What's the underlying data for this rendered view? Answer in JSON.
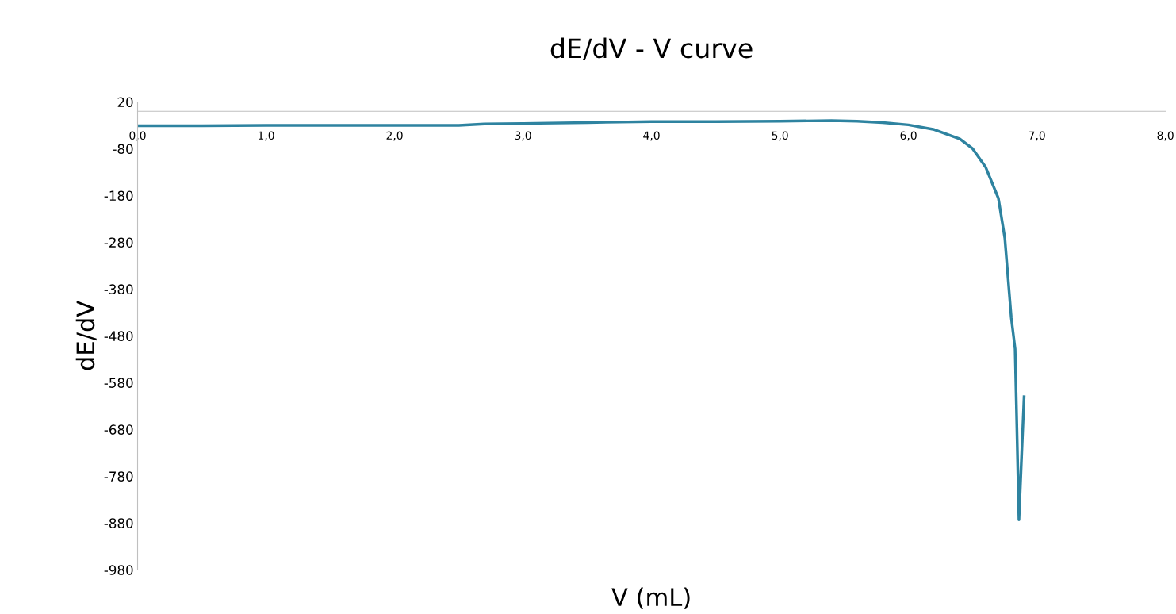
{
  "chart_data": {
    "type": "line",
    "title": "dE/dV - V curve",
    "xlabel": "V (mL)",
    "ylabel": "dE/dV",
    "series": [
      {
        "color": "#2e83a0",
        "x": [
          0.0,
          0.5,
          1.0,
          1.5,
          2.0,
          2.5,
          2.7,
          3.0,
          3.5,
          4.0,
          4.5,
          5.0,
          5.4,
          5.6,
          5.8,
          6.0,
          6.2,
          6.4,
          6.5,
          6.6,
          6.7,
          6.75,
          6.8,
          6.83,
          6.86,
          6.9
        ],
        "values": [
          -31,
          -31,
          -30,
          -30,
          -30,
          -30,
          -27,
          -26,
          -24,
          -22,
          -22,
          -21,
          -20,
          -21,
          -24,
          -29,
          -39,
          -59,
          -80,
          -119,
          -186,
          -271,
          -441,
          -508,
          -873,
          -610
        ]
      }
    ],
    "xlim": [
      0,
      8
    ],
    "ylim": [
      -980,
      20
    ],
    "xticks": [
      {
        "value": 0,
        "label": "0,0"
      },
      {
        "value": 1,
        "label": "1,0"
      },
      {
        "value": 2,
        "label": "2,0"
      },
      {
        "value": 3,
        "label": "3,0"
      },
      {
        "value": 4,
        "label": "4,0"
      },
      {
        "value": 5,
        "label": "5,0"
      },
      {
        "value": 6,
        "label": "6,0"
      },
      {
        "value": 7,
        "label": "7,0"
      },
      {
        "value": 8,
        "label": "8,0"
      }
    ],
    "yticks": [
      20,
      -80,
      -180,
      -280,
      -380,
      -480,
      -580,
      -680,
      -780,
      -880,
      -980
    ],
    "grid": false,
    "legend": false,
    "marker": "none",
    "line_style": "solid"
  }
}
